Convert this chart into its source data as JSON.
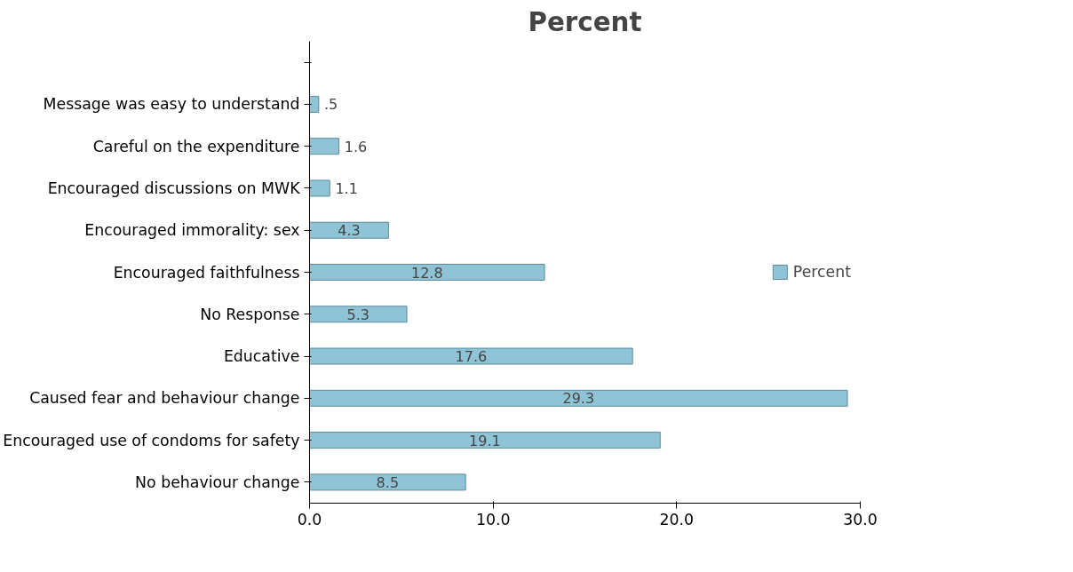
{
  "chart_data": {
    "type": "bar",
    "orientation": "horizontal",
    "title": "Percent",
    "categories": [
      null,
      "Message was easy to understand",
      "Careful on the expenditure",
      "Encouraged discussions on MWK",
      "Encouraged immorality: sex",
      "Encouraged faithfulness",
      "No Response",
      "Educative",
      "Caused fear and behaviour change",
      "Encouraged use of condoms for safety",
      "No behaviour change"
    ],
    "series": [
      {
        "name": "Percent",
        "color": "#8fc3d6",
        "values": [
          null,
          0.5,
          1.6,
          1.1,
          4.3,
          12.8,
          5.3,
          17.6,
          29.3,
          19.1,
          8.5
        ],
        "value_labels": [
          null,
          ".5",
          "1.6",
          "1.1",
          "4.3",
          "12.8",
          "5.3",
          "17.6",
          "29.3",
          "19.1",
          "8.5"
        ]
      }
    ],
    "xlim": [
      0,
      30
    ],
    "xticks": [
      {
        "value": 0,
        "label": "0.0"
      },
      {
        "value": 10,
        "label": "10.0"
      },
      {
        "value": 20,
        "label": "20.0"
      },
      {
        "value": 30,
        "label": "30.0"
      }
    ],
    "grid": false,
    "legend": "right"
  }
}
